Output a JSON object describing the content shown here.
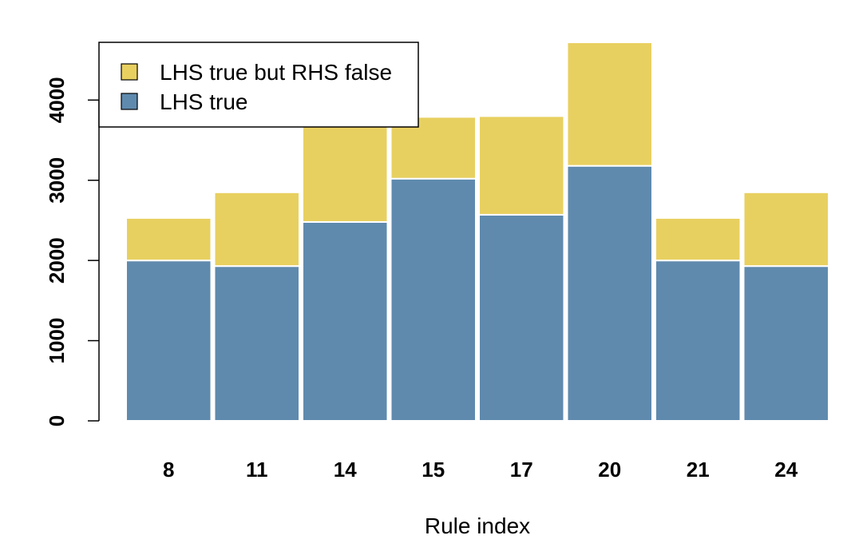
{
  "chart_data": {
    "type": "bar",
    "stacked": true,
    "categories": [
      "8",
      "11",
      "14",
      "15",
      "17",
      "20",
      "21",
      "24"
    ],
    "series": [
      {
        "name": "LHS true",
        "color": "#5f8aae",
        "values": [
          2000,
          1930,
          2480,
          3020,
          2570,
          3180,
          2000,
          1930
        ]
      },
      {
        "name": "LHS true but RHS false",
        "color": "#e8d060",
        "values": [
          530,
          920,
          1220,
          770,
          1230,
          1540,
          530,
          920
        ]
      }
    ],
    "xlabel": "Rule index",
    "ylabel": "",
    "ylim": [
      0,
      4720
    ],
    "yticks": [
      "0",
      "1000",
      "2000",
      "3000",
      "4000"
    ],
    "grid": false,
    "legend": {
      "placement": "top-left",
      "entries": [
        "LHS true but RHS false",
        "LHS true"
      ]
    }
  }
}
